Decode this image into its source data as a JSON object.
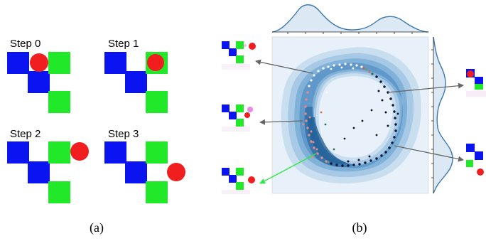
{
  "panel_a": {
    "caption": "(a)",
    "steps": [
      {
        "label": "Step 0"
      },
      {
        "label": "Step 1"
      },
      {
        "label": "Step 2"
      },
      {
        "label": "Step 3"
      }
    ]
  },
  "panel_b": {
    "caption": "(b)"
  },
  "colors": {
    "blue_block": "#0a14f0",
    "green_block": "#22e82a",
    "red_ball": "#f01e1e",
    "density_dark": "#1f5f96",
    "density_light": "#e3eef8",
    "marginal_line": "#3d7bb0",
    "arrow_gray": "#666666",
    "arrow_green": "#2ee84a",
    "point_navy": "#0b1430",
    "point_pink": "#e88a86",
    "point_white": "#ffffff"
  }
}
